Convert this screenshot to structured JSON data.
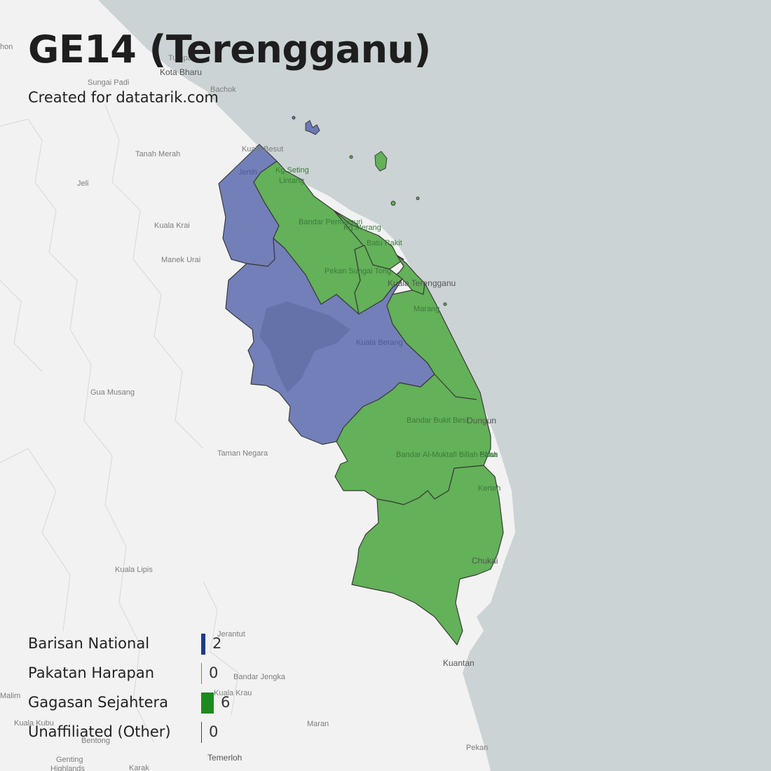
{
  "title": "GE14 (Terengganu)",
  "subtitle": "Created for datatarik.com",
  "colors": {
    "land": "#f2f2f2",
    "sea": "#ccd3d5",
    "barisan": "#6b78b5",
    "gagasan": "#63b158",
    "border": "#3a3a3a"
  },
  "legend": [
    {
      "label": "Barisan National",
      "count": "2",
      "color": "#1f3a8a",
      "width_share": 2
    },
    {
      "label": "Pakatan Harapan",
      "count": "0",
      "color": "#e0524f",
      "width_share": 0
    },
    {
      "label": "Gagasan Sejahtera",
      "count": "6",
      "color": "#1e8a1e",
      "width_share": 6
    },
    {
      "label": "Unaffiliated (Other)",
      "count": "0",
      "color": "#444444",
      "width_share": 0
    }
  ],
  "places": {
    "kota_bharu": "Kota Bharu",
    "tumpat": "Tumpat",
    "bachok": "Bachok",
    "sungai_padi": "Sungai Padi",
    "tanah_merah": "Tanah Merah",
    "jeli": "Jeli",
    "kuala_krai": "Kuala Krai",
    "manek_urai": "Manek Urai",
    "gua_musang": "Gua Musang",
    "taman_negara": "Taman Negara",
    "kuala_lipis": "Kuala Lipis",
    "jerantut": "Jerantut",
    "bandar_jengka": "Bandar Jengka",
    "kuala_krau": "Kuala Krau",
    "kuala_kubu": "Kuala Kubu",
    "bentong": "Bentong",
    "genting": "Genting",
    "highlands": "Highlands",
    "karak": "Karak",
    "temerloh": "Temerloh",
    "maran": "Maran",
    "kuantan": "Kuantan",
    "pekan": "Pekan",
    "kuala_besut": "Kuala Besut",
    "jertih": "Jertih",
    "kg_seting": "Kg.Seting",
    "lintang": "Lintang",
    "bandar_permaisuri": "Bandar Permaisuri",
    "kg_merang": "Kg.Merang",
    "batu_rakit": "Batu Rakit",
    "pekan_sungai_tong": "Pekan Sungai Tong",
    "kuala_terengganu": "Kuala Terengganu",
    "marang": "Marang",
    "kuala_berang": "Kuala Berang",
    "bandar_bukit_besi": "Bandar Bukit Besi",
    "dungun": "Dungun",
    "paka": "Paka",
    "bandar_al_muktafi": "Bandar Al-Muktafi Billah Shah",
    "kerteh": "Kerteh",
    "chukai": "Chukai",
    "kalam": "Malim",
    "hon": "hon"
  }
}
